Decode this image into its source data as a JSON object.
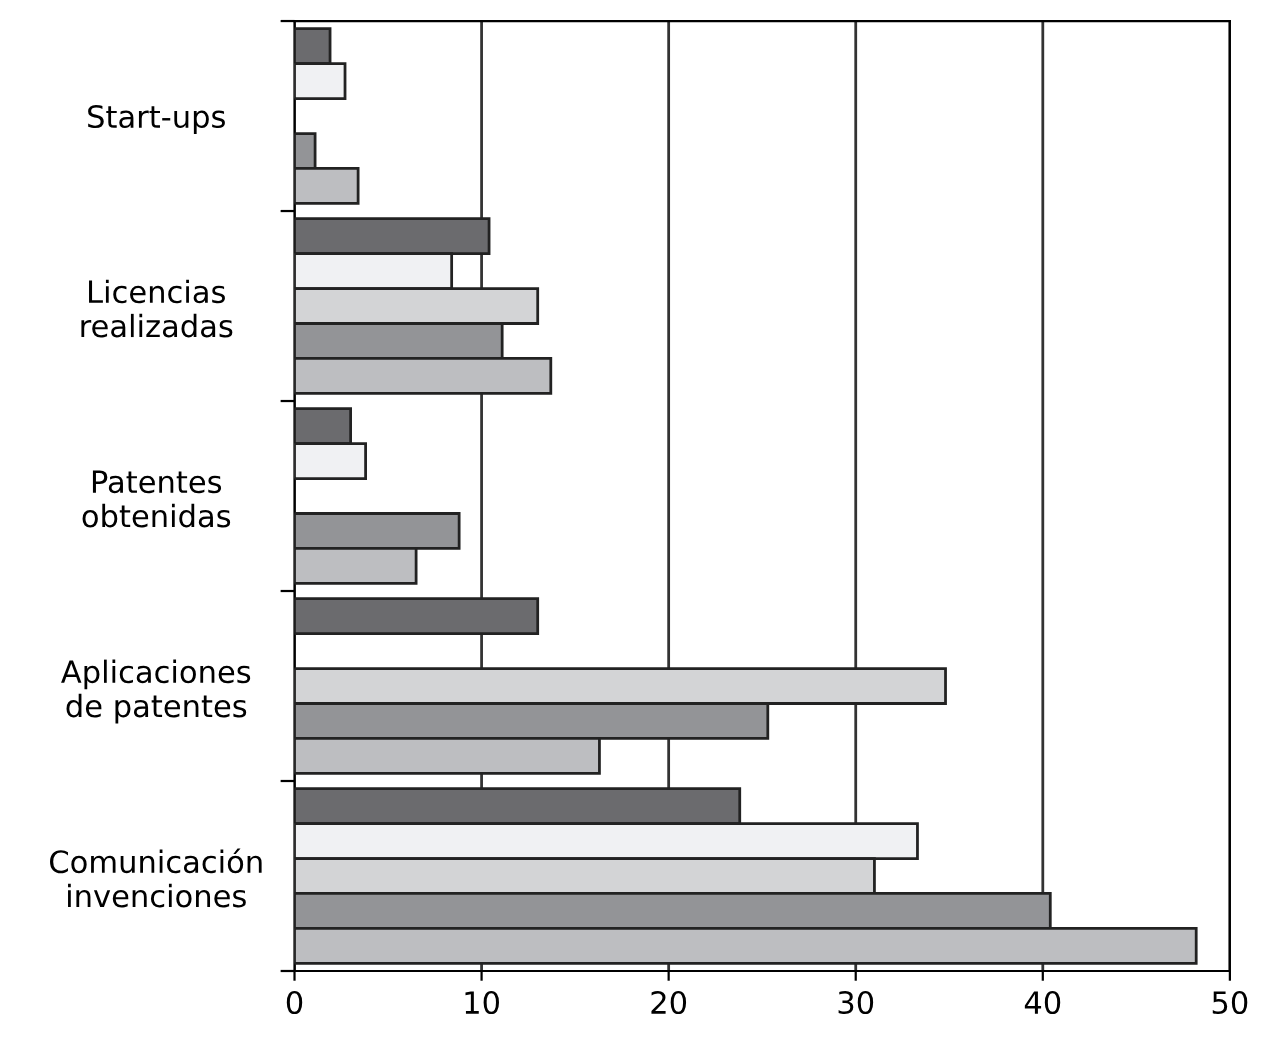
{
  "chart_data": {
    "type": "bar",
    "orientation": "horizontal",
    "categories": [
      "Start-ups",
      "Licencias\nrealizadas",
      "Patentes\nobtenidas",
      "Aplicaciones\nde patentes",
      "Comunicación\ninvenciones"
    ],
    "series": [
      {
        "color": "#6b6b6e",
        "values": [
          1.9,
          10.4,
          3.0,
          13.0,
          23.8
        ]
      },
      {
        "color": "#f0f1f3",
        "values": [
          2.7,
          8.4,
          3.8,
          null,
          33.3
        ]
      },
      {
        "color": "#d3d4d6",
        "values": [
          null,
          13.0,
          null,
          34.8,
          31.0
        ]
      },
      {
        "color": "#939497",
        "values": [
          1.1,
          11.1,
          8.8,
          25.3,
          40.4
        ]
      },
      {
        "color": "#bdbec1",
        "values": [
          3.4,
          13.7,
          6.5,
          16.3,
          48.2
        ]
      }
    ],
    "xlim": [
      0,
      50
    ],
    "xticks": [
      0,
      10,
      20,
      30,
      40,
      50
    ],
    "grid": "x",
    "legend": false
  }
}
